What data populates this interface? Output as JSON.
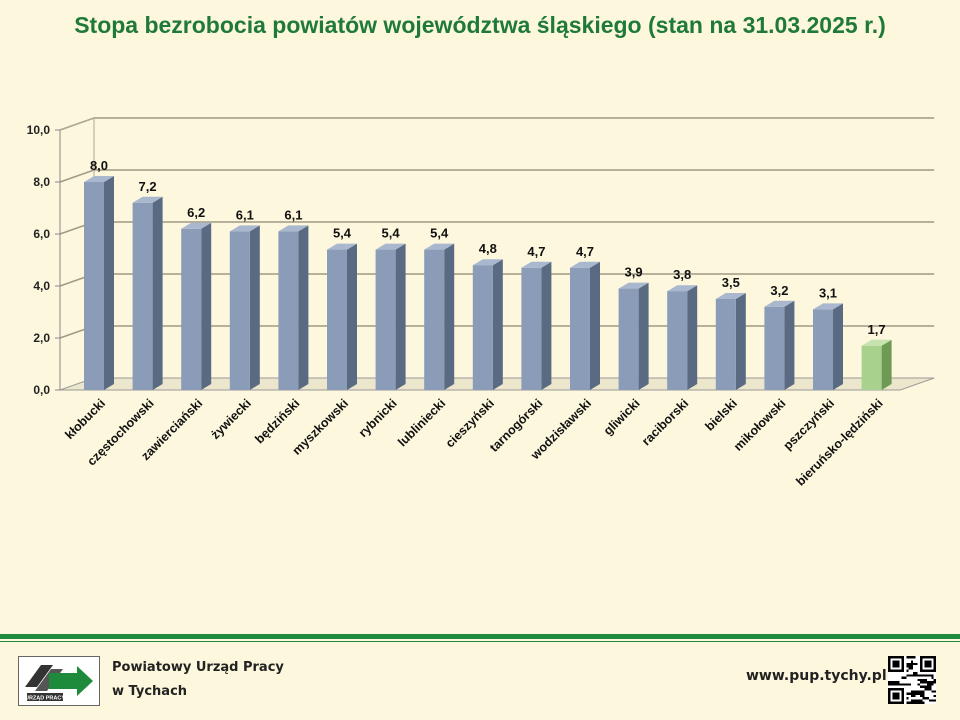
{
  "title": "Stopa bezrobocia powiatów województwa śląskiego (stan na 31.03.2025 r.)",
  "footer": {
    "org_line_1": "Powiatowy Urząd Pracy",
    "org_line_2": "w Tychach",
    "logo_text": "URZĄD PRACY",
    "website": "www.pup.tychy.pl"
  },
  "colors": {
    "title": "#1f7a3a",
    "bar": "#8a9cb8",
    "bar_highlight": "#a9d18e",
    "footer_line": "#1e8a3c",
    "background": "#fdf7dd"
  },
  "chart_data": {
    "type": "bar",
    "categories": [
      "kłobucki",
      "częstochowski",
      "zawierciański",
      "żywiecki",
      "będziński",
      "myszkowski",
      "rybnicki",
      "lubliniecki",
      "cieszyński",
      "tarnogórski",
      "wodzisławski",
      "gliwicki",
      "raciborski",
      "bielski",
      "mikołowski",
      "pszczyński",
      "bieruńsko-lędziński"
    ],
    "values": [
      8.0,
      7.2,
      6.2,
      6.1,
      6.1,
      5.4,
      5.4,
      5.4,
      4.8,
      4.7,
      4.7,
      3.9,
      3.8,
      3.5,
      3.2,
      3.1,
      1.7
    ],
    "value_labels": [
      "8,0",
      "7,2",
      "6,2",
      "6,1",
      "6,1",
      "5,4",
      "5,4",
      "5,4",
      "4,8",
      "4,7",
      "4,7",
      "3,9",
      "3,8",
      "3,5",
      "3,2",
      "3,1",
      "1,7"
    ],
    "highlight_index": 16,
    "ylim": [
      0,
      10
    ],
    "yticks": [
      "0,0",
      "2,0",
      "4,0",
      "6,0",
      "8,0",
      "10,0"
    ],
    "grid": true,
    "xlabel": "",
    "ylabel": ""
  }
}
